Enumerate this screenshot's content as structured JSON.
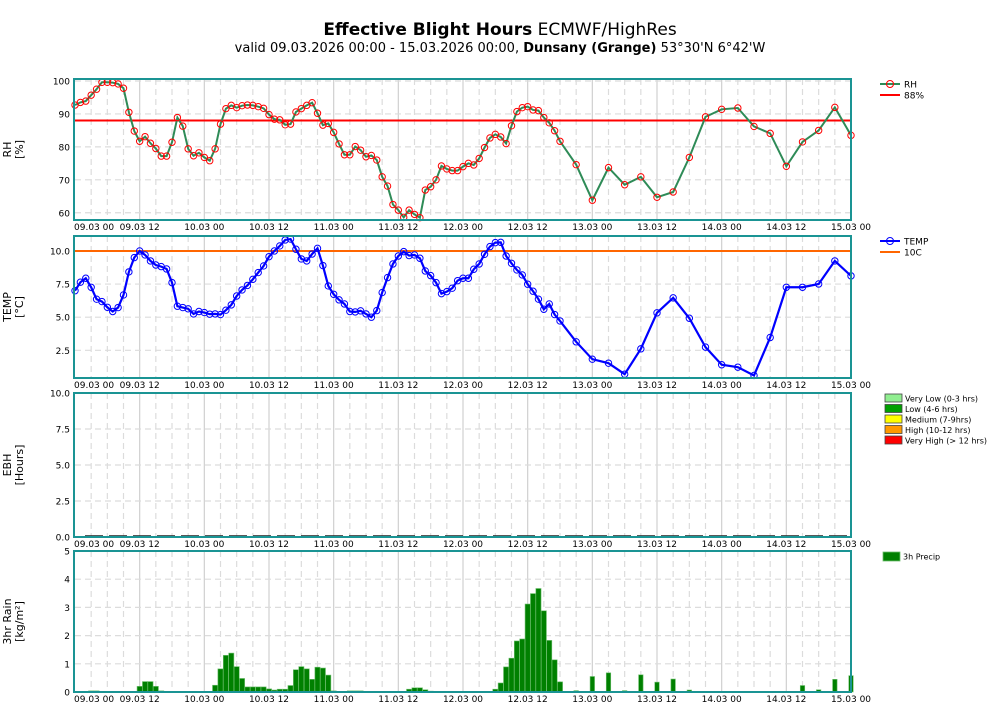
{
  "title": {
    "bold": "Effective Blight Hours",
    "rest": "ECMWF/HighRes"
  },
  "subtitle": {
    "prefix": "valid 09.03.2026 00:00 - 15.03.2026 00:00,",
    "location": "Dunsany (Grange)",
    "coords": "53°30'N 6°42'W"
  },
  "colors": {
    "frame": "#1a9494",
    "rh_line": "#2e8b57",
    "rh_marker": "#ff0000",
    "rh_threshold": "#ff0000",
    "temp_line": "#0000ff",
    "temp_threshold": "#ff6600",
    "precip": "#008000",
    "grid": "#d8d8d8"
  },
  "chart_data": [
    {
      "type": "line",
      "id": "rh",
      "ylabel": [
        "RH",
        "[%]"
      ],
      "ylim": [
        57.8,
        100.6
      ],
      "yticks": [
        "60",
        "70",
        "80",
        "90",
        "100"
      ],
      "xlim": [
        "09.03 00",
        "15.03 00"
      ],
      "xticks": [
        "09.03 00",
        "09.03 12",
        "10.03 00",
        "10.03 12",
        "11.03 00",
        "11.03 12",
        "12.03 00",
        "12.03 12",
        "13.03 00",
        "13.03 12",
        "14.03 00",
        "14.03 12",
        "15.03 00"
      ],
      "grid": true,
      "legend": "right",
      "series": [
        {
          "name": "RH",
          "marker": "circle",
          "values": [
            92.7,
            93.5,
            93.9,
            95.7,
            97.5,
            99.6,
            99.6,
            99.5,
            99.1,
            97.8,
            90.5,
            84.8,
            81.7,
            83.1,
            81.1,
            79.5,
            77.2,
            77.2,
            81.4,
            88.9,
            86.3,
            79.4,
            77.3,
            78.2,
            76.8,
            75.8,
            79.4,
            86.9,
            91.6,
            92.6,
            91.9,
            92.5,
            92.7,
            92.6,
            92.2,
            91.7,
            89.8,
            88.4,
            88.2,
            86.7,
            86.9,
            90.6,
            91.6,
            92.6,
            93.4,
            90.2,
            86.6,
            87.1,
            84.4,
            80.9,
            77.6,
            77.6,
            80.1,
            79.0,
            77.0,
            77.4,
            76.0,
            70.9,
            68.1,
            62.5,
            60.8,
            58.6,
            60.8,
            59.5,
            58.5,
            66.9,
            67.9,
            70.0,
            74.2,
            73.3,
            72.8,
            72.8,
            74.0,
            75.0,
            74.5,
            76.5,
            79.8,
            82.7,
            83.8,
            83.0,
            81.0,
            86.4,
            90.7,
            91.9,
            92.2,
            91.2,
            91.0,
            88.9,
            87.3,
            84.9,
            81.7,
            74.6,
            63.8,
            73.7,
            68.5,
            70.9,
            64.7,
            66.3,
            76.8,
            89.1,
            91.4,
            91.8,
            86.2,
            84.1,
            74.1,
            81.5,
            85.0,
            92.0,
            83.5
          ]
        },
        {
          "name": "88%",
          "threshold": 88
        }
      ]
    },
    {
      "type": "line",
      "id": "temp",
      "ylabel": [
        "TEMP",
        "[°C]"
      ],
      "ylim": [
        0.41,
        11.13
      ],
      "yticks": [
        "2.5",
        "5.0",
        "7.5",
        "10.0"
      ],
      "grid": true,
      "legend": "right",
      "series": [
        {
          "name": "TEMP",
          "marker": "circle",
          "values": [
            7.0,
            7.64,
            7.94,
            7.26,
            6.36,
            6.18,
            5.75,
            5.43,
            5.73,
            6.68,
            8.42,
            9.5,
            10.0,
            9.7,
            9.25,
            8.94,
            8.82,
            8.64,
            7.61,
            5.83,
            5.73,
            5.63,
            5.25,
            5.43,
            5.35,
            5.23,
            5.25,
            5.2,
            5.53,
            5.93,
            6.6,
            7.06,
            7.4,
            7.86,
            8.37,
            8.87,
            9.57,
            10.0,
            10.38,
            10.83,
            10.9,
            10.13,
            9.4,
            9.25,
            9.77,
            10.2,
            8.9,
            7.36,
            6.73,
            6.31,
            6.0,
            5.43,
            5.4,
            5.48,
            5.25,
            5.0,
            5.5,
            6.86,
            7.99,
            9.02,
            9.62,
            9.95,
            9.65,
            9.7,
            9.45,
            8.49,
            8.14,
            7.61,
            6.78,
            6.93,
            7.19,
            7.76,
            7.94,
            7.94,
            8.62,
            9.02,
            9.75,
            10.33,
            10.63,
            10.65,
            9.62,
            9.07,
            8.57,
            8.19,
            7.49,
            6.96,
            6.36,
            5.6,
            6.0,
            5.2,
            4.72,
            3.14,
            1.83,
            1.53,
            0.7,
            2.61,
            5.33,
            6.46,
            4.92,
            2.74,
            1.41,
            1.23,
            0.6,
            3.47,
            7.26,
            7.26,
            7.51,
            9.25,
            8.12
          ]
        },
        {
          "name": "10C",
          "threshold": 10
        }
      ]
    },
    {
      "type": "bar",
      "id": "ebh",
      "ylabel": [
        "EBH",
        "[Hours]"
      ],
      "ylim": [
        0,
        10
      ],
      "yticks": [
        "0.0",
        "2.5",
        "5.0",
        "7.5",
        "10.0"
      ],
      "grid": true,
      "legend": "right",
      "categories_legend": [
        {
          "name": "Very Low (0-3 hrs)",
          "color": "#90ee90"
        },
        {
          "name": "Low (4-6 hrs)",
          "color": "#00a000"
        },
        {
          "name": "Medium (7-9hrs)",
          "color": "#ffff00"
        },
        {
          "name": "High (10-12 hrs)",
          "color": "#ff9900"
        },
        {
          "name": "Very High (> 12 hrs)",
          "color": "#ff0000"
        }
      ]
    },
    {
      "type": "bar",
      "id": "precip",
      "ylabel": [
        "3hr Rain",
        "[kg/m²]"
      ],
      "ylim": [
        0,
        5
      ],
      "yticks": [
        "0",
        "1",
        "2",
        "3",
        "4",
        "5"
      ],
      "grid": true,
      "legend": "right",
      "series": [
        {
          "name": "3h Precip",
          "values": [
            null,
            null,
            null,
            0.04,
            0.04,
            0.01,
            0.01,
            0.01,
            0.01,
            0.01,
            0.01,
            0.01,
            0.2,
            0.37,
            0.37,
            0.2,
            0.04,
            0.02,
            0.02,
            0.02,
            0.02,
            0.02,
            0.02,
            0.02,
            0.02,
            0.02,
            0.24,
            0.82,
            1.3,
            1.38,
            0.9,
            0.48,
            0.18,
            0.18,
            0.18,
            0.18,
            0.11,
            0.07,
            0.1,
            0.1,
            0.23,
            0.79,
            0.9,
            0.82,
            0.45,
            0.88,
            0.85,
            0.6,
            0.04,
            0.02,
            0.02,
            0.04,
            0.04,
            0.04,
            0.02,
            0.02,
            0.02,
            0.02,
            0.02,
            0.02,
            0.02,
            0.02,
            0.1,
            0.15,
            0.15,
            0.08,
            0.03,
            0.02,
            0.02,
            0.02,
            0.02,
            0.02,
            0.02,
            0.02,
            0.02,
            0.02,
            0.02,
            0.02,
            0.1,
            0.32,
            0.89,
            1.2,
            1.81,
            1.88,
            3.12,
            3.49,
            3.67,
            2.88,
            1.83,
            1.14,
            0.36,
            0.05,
            0.55,
            0.68,
            0.05,
            0.61,
            0.35,
            0.46,
            0.07,
            0.02,
            0.02,
            0.02,
            0.02,
            0.02,
            0.02,
            0.23,
            0.08,
            0.45,
            0.58
          ]
        }
      ]
    }
  ],
  "time_axis": {
    "hourly_from": "09.03 00",
    "hourly_to": "12.03 18",
    "three_hourly_from": "12.03 21",
    "three_hourly_to": "15.03 00"
  }
}
